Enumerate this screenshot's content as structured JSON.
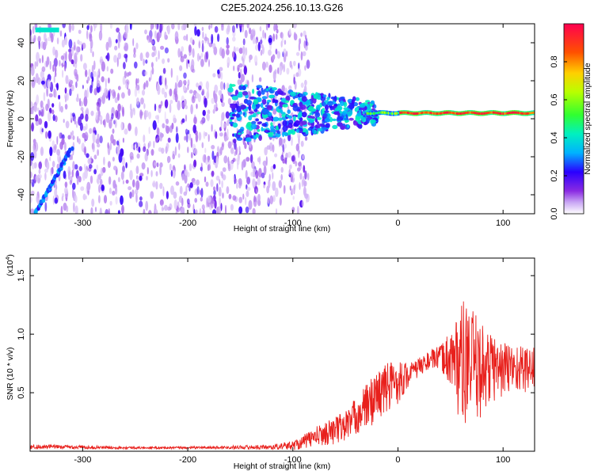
{
  "title": "C2E5.2024.256.10.13.G26",
  "colors": {
    "snr_line": "#e8201c",
    "spectrogram_base": "#8a2be2",
    "frame": "#000000"
  },
  "chart_data": [
    {
      "type": "heatmap",
      "name": "spectrogram",
      "xlabel": "Height of straight line (km)",
      "ylabel": "Frequency (Hz)",
      "xlim": [
        -350,
        130
      ],
      "ylim": [
        -50,
        50
      ],
      "xticks": [
        -300,
        -200,
        -100,
        0,
        100
      ],
      "yticks": [
        -40,
        -20,
        0,
        20,
        40
      ],
      "colorbar": {
        "label": "Normalized spectral amplitude",
        "range": [
          0,
          1
        ],
        "ticks": [
          "0.0",
          "0.2",
          "0.4",
          "0.6",
          "0.8"
        ],
        "colormap": "rainbow"
      },
      "features": {
        "carrier_frequency_hz": 3,
        "noise_region_x": [
          -350,
          -105
        ],
        "cluster_region_x": [
          -160,
          -20
        ],
        "diagonal_feature": {
          "x": [
            -345,
            -310
          ],
          "y": [
            -50,
            -15
          ]
        }
      }
    },
    {
      "type": "line",
      "name": "snr",
      "xlabel": "Height of straight line (km)",
      "ylabel": "SNR (10 * v/v)",
      "ymultiplier_label": "(x10",
      "ymultiplier_exp": "4",
      "xlim": [
        -350,
        130
      ],
      "ylim": [
        0,
        1.65
      ],
      "xticks": [
        -300,
        -200,
        -100,
        0,
        100
      ],
      "yticks": [
        "0.5",
        "1.0",
        "1.5"
      ],
      "envelope": {
        "x": [
          -350,
          -300,
          -250,
          -200,
          -150,
          -120,
          -100,
          -90,
          -80,
          -70,
          -60,
          -50,
          -40,
          -30,
          -20,
          -10,
          0,
          10,
          20,
          30,
          40,
          50,
          60,
          70,
          80,
          90,
          100,
          110,
          120,
          130
        ],
        "mean": [
          0.04,
          0.035,
          0.03,
          0.03,
          0.035,
          0.035,
          0.05,
          0.08,
          0.12,
          0.15,
          0.18,
          0.22,
          0.3,
          0.38,
          0.48,
          0.55,
          0.6,
          0.65,
          0.72,
          0.78,
          0.8,
          0.8,
          0.75,
          0.72,
          0.7,
          0.72,
          0.7,
          0.72,
          0.7,
          0.72
        ],
        "amp": [
          0.02,
          0.015,
          0.01,
          0.01,
          0.015,
          0.02,
          0.04,
          0.06,
          0.08,
          0.1,
          0.12,
          0.14,
          0.16,
          0.2,
          0.22,
          0.22,
          0.2,
          0.1,
          0.08,
          0.08,
          0.1,
          0.25,
          0.55,
          0.5,
          0.4,
          0.3,
          0.25,
          0.22,
          0.2,
          0.2
        ]
      }
    }
  ]
}
